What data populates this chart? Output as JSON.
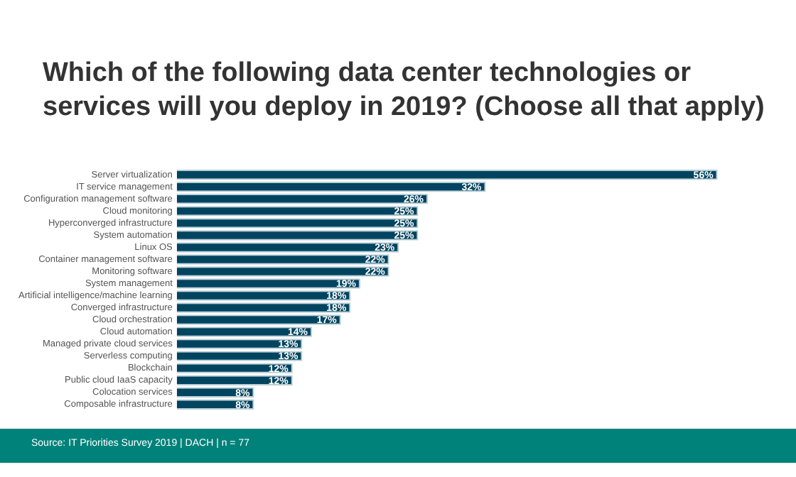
{
  "chart_data": {
    "type": "bar",
    "orientation": "horizontal",
    "title": "Which of the following data center technologies or services will you deploy in 2019? (Choose all that apply)",
    "categories": [
      "Server virtualization",
      "IT service management",
      "Configuration management software",
      "Cloud monitoring",
      "Hyperconverged infrastructure",
      "System automation",
      "Linux OS",
      "Container management software",
      "Monitoring software",
      "System management",
      "Artificial intelligence/machine learning",
      "Converged infrastructure",
      "Cloud orchestration",
      "Cloud automation",
      "Managed private cloud services",
      "Serverless computing",
      "Blockchain",
      "Public cloud IaaS capacity",
      "Colocation services",
      "Composable infrastructure"
    ],
    "values": [
      56,
      32,
      26,
      25,
      25,
      25,
      23,
      22,
      22,
      19,
      18,
      18,
      17,
      14,
      13,
      13,
      12,
      12,
      8,
      8
    ],
    "value_labels": [
      "56%",
      "32%",
      "26%",
      "25%",
      "25%",
      "25%",
      "23%",
      "22%",
      "22%",
      "19%",
      "18%",
      "18%",
      "17%",
      "14%",
      "13%",
      "13%",
      "12%",
      "12%",
      "8%",
      "8%"
    ],
    "color": "#00445f",
    "grid": false,
    "legend": false,
    "tick_labels": "y",
    "annotations": [
      "Source: IT Priorities Survey 2019 | DACH | n = 77"
    ]
  }
}
